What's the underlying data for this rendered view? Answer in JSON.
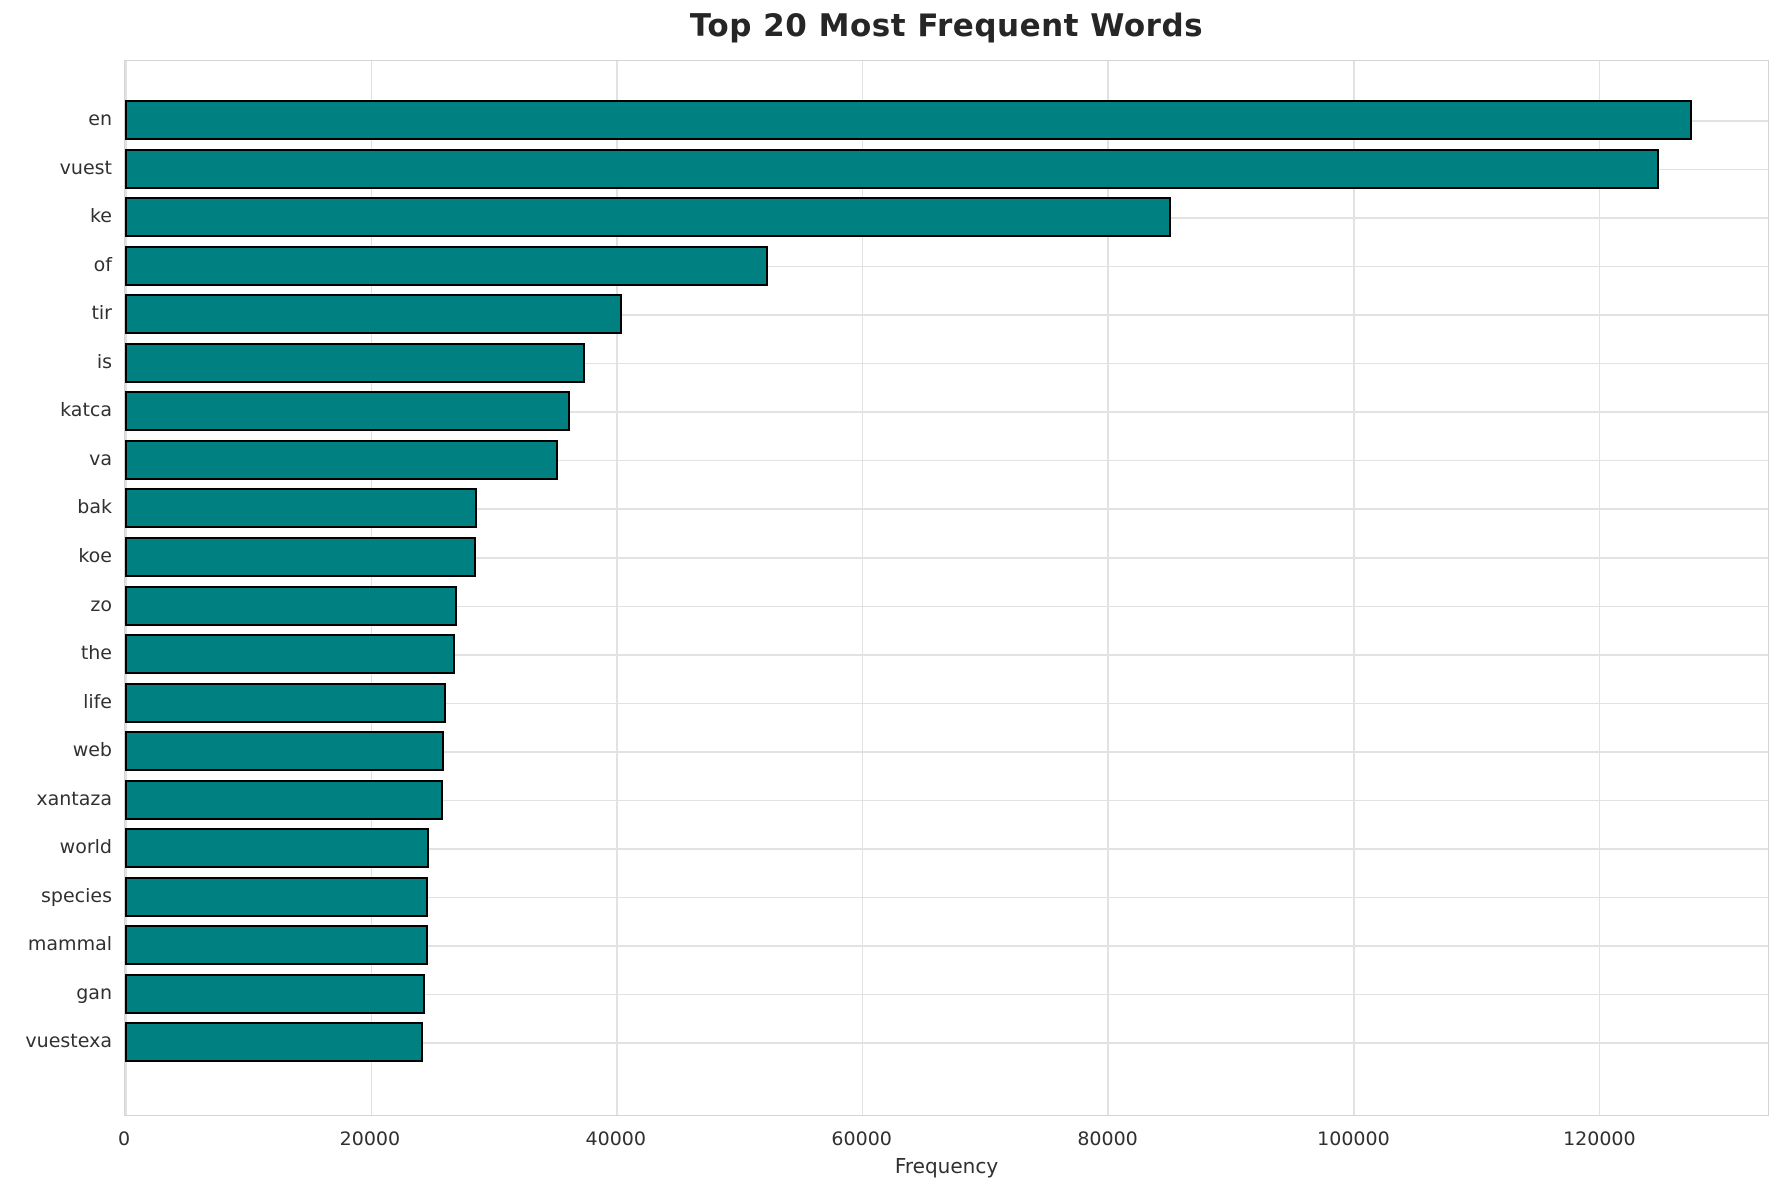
{
  "chart_data": {
    "type": "bar",
    "orientation": "horizontal",
    "title": "Top 20 Most Frequent Words",
    "xlabel": "Frequency",
    "ylabel": "",
    "categories": [
      "en",
      "vuest",
      "ke",
      "of",
      "tir",
      "is",
      "katca",
      "va",
      "bak",
      "koe",
      "zo",
      "the",
      "life",
      "web",
      "xantaza",
      "world",
      "species",
      "mammal",
      "gan",
      "vuestexa"
    ],
    "values": [
      127600,
      124900,
      85200,
      52400,
      40500,
      37500,
      36200,
      35300,
      28700,
      28550,
      27000,
      26850,
      26150,
      25950,
      25900,
      24750,
      24700,
      24650,
      24400,
      24250
    ],
    "xticks": [
      0,
      20000,
      40000,
      60000,
      80000,
      100000,
      120000
    ],
    "xtick_labels": [
      "0",
      "20000",
      "40000",
      "60000",
      "80000",
      "100000",
      "120000"
    ],
    "xlim": [
      0,
      133800
    ],
    "grid": true,
    "legend": "none",
    "bar_color": "#008080",
    "bar_edge_color": "#000000",
    "gridline_color": "#e2e2e2"
  }
}
